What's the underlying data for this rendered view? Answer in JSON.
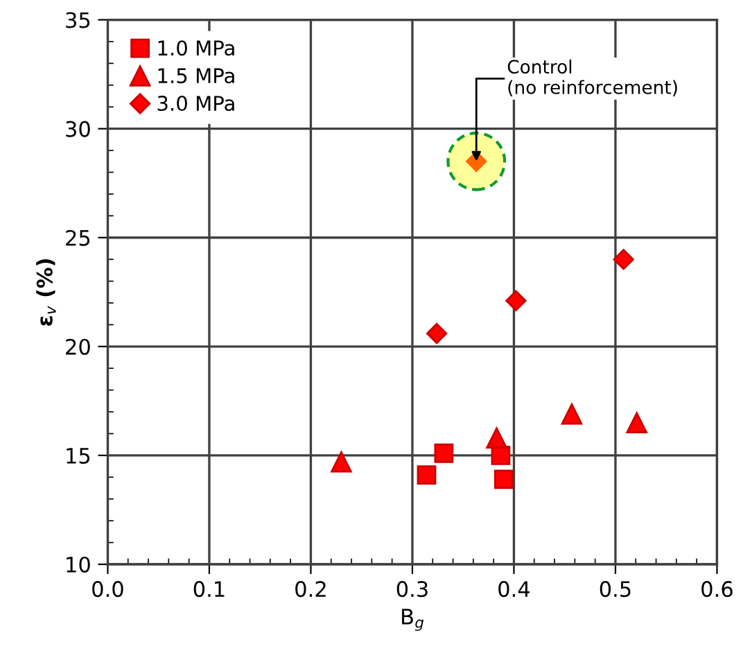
{
  "chart_data": {
    "type": "scatter",
    "xlabel": "B$_{g}$",
    "ylabel": "ε$_{v}$ (%)",
    "xlim": [
      0.0,
      0.6
    ],
    "xticks": [
      {
        "value": 0,
        "label": "0.0"
      },
      0.1,
      0.2,
      0.3,
      0.4,
      0.5,
      0.6
    ],
    "ylim": [
      10,
      35
    ],
    "yticks": [
      10,
      15,
      20,
      25,
      30,
      35
    ],
    "grid": true,
    "legend": "top left",
    "series": [
      {
        "name": "1.0 MPa",
        "color": "#ff0000",
        "marker": "square",
        "x": [
          0.314,
          0.331,
          0.387,
          0.39
        ],
        "values": [
          14.1,
          15.1,
          15.0,
          13.9
        ]
      },
      {
        "name": "1.5 MPa",
        "color": "#ff0000",
        "marker": "triangle",
        "x": [
          0.23,
          0.383,
          0.457,
          0.521
        ],
        "values": [
          14.7,
          15.8,
          16.9,
          16.5
        ]
      },
      {
        "name": "3.0 MPa",
        "color": "#ff0000",
        "marker": "diamond",
        "x": [
          0.324,
          0.402,
          0.508
        ],
        "values": [
          20.6,
          22.1,
          24.0
        ]
      },
      {
        "color": "#ff6600",
        "marker": "diamond",
        "x": [
          0.363
        ],
        "values": [
          28.5
        ]
      }
    ],
    "annotations": [
      {
        "text": "Control\n(no reinforcement)",
        "x": 0.363,
        "y": 28.5
      }
    ]
  }
}
